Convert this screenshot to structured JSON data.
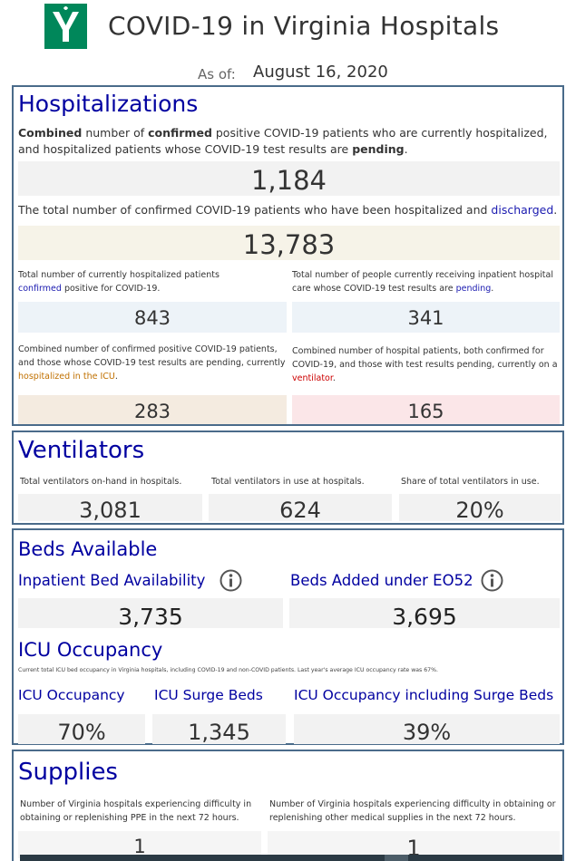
{
  "header": {
    "title": "COVID-19 in Virginia Hospitals",
    "as_of_label": "As of:",
    "as_of_value": "August 16, 2020",
    "brand_color": "#00875a"
  },
  "hospitalizations": {
    "title": "Hospitalizations",
    "combined": {
      "desc_a": "Combined",
      "desc_b": " number of ",
      "desc_c": "confirmed",
      "desc_d": " positive COVID-19 patients who are currently hospitalized, and hospitalized patients whose COVID-19 test results are ",
      "desc_e": "pending",
      "desc_f": ".",
      "value": "1,184"
    },
    "discharged": {
      "desc_a": "The total number of confirmed COVID-19 patients who have been hospitalized and ",
      "desc_b": "discharged",
      "desc_c": ".",
      "value": "13,783"
    },
    "confirmed": {
      "desc_a": "Total number of currently hospitalized patients ",
      "desc_b": "confirmed",
      "desc_c": " positive for COVID-19.",
      "value": "843"
    },
    "pending": {
      "desc_a": "Total number of people currently receiving inpatient hospital care whose COVID-19 test results are ",
      "desc_b": "pending",
      "desc_c": ".",
      "value": "341"
    },
    "icu": {
      "desc_a": "Combined number of confirmed positive COVID-19 patients, and those whose COVID-19 test results are pending, currently ",
      "desc_b": "hospitalized in the ICU",
      "desc_c": ".",
      "value": "283"
    },
    "ventilator": {
      "desc_a": "Combined number of hospital patients, both confirmed for COVID-19, and those with test results pending, currently on a ",
      "desc_b": "ventilator",
      "desc_c": ".",
      "value": "165"
    }
  },
  "ventilators": {
    "title": "Ventilators",
    "on_hand": {
      "label": "Total ventilators on-hand in hospitals.",
      "value": "3,081"
    },
    "in_use": {
      "label": "Total ventilators in use at hospitals.",
      "value": "624"
    },
    "share": {
      "label": "Share of total ventilators in use.",
      "value": "20%"
    }
  },
  "beds": {
    "title": "Beds Available",
    "inpatient": {
      "label": "Inpatient Bed Availability",
      "value": "3,735",
      "icon": "info-icon"
    },
    "eo52": {
      "label": "Beds Added under EO52",
      "value": "3,695",
      "icon": "info-icon"
    },
    "icu_title": "ICU Occupancy",
    "icu_desc": "Current total ICU bed occupancy in Virginia hospitals, including COVID-19 and non-COVID patients. Last year's average ICU occupancy rate was 67%.",
    "icu_occupancy": {
      "label": "ICU Occupancy",
      "value": "70%"
    },
    "icu_surge": {
      "label": "ICU Surge Beds",
      "value": "1,345"
    },
    "icu_incl_surge": {
      "label": "ICU Occupancy including Surge Beds",
      "value": "39%"
    }
  },
  "supplies": {
    "title": "Supplies",
    "ppe": {
      "label": "Number of Virginia hospitals experiencing difficulty in obtaining or replenishing PPE in the next 72 hours.",
      "value": "1"
    },
    "other": {
      "label": "Number of Virginia hospitals experiencing difficulty in obtaining or replenishing other medical supplies in the next 72 hours.",
      "value": "1"
    }
  }
}
